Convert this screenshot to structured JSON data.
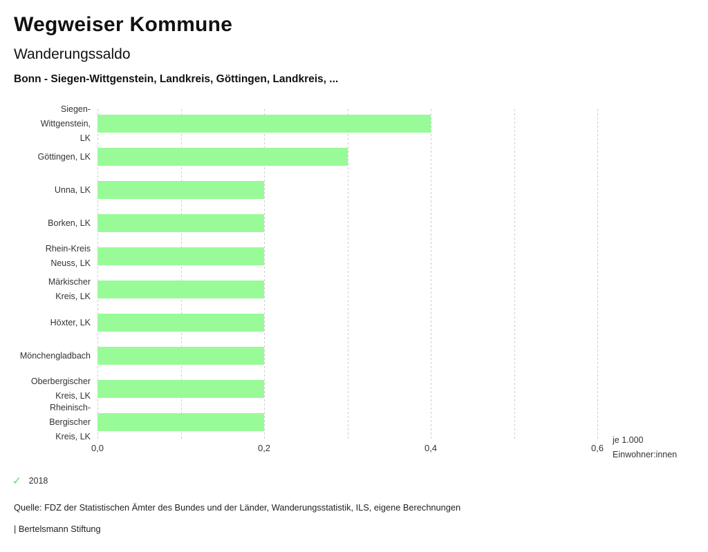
{
  "header": {
    "title": "Wegweiser Kommune",
    "subtitle": "Wanderungssaldo",
    "comparison": "Bonn - Siegen-Wittgenstein, Landkreis, Göttingen, Landkreis, ..."
  },
  "chart_data": {
    "type": "bar",
    "orientation": "horizontal",
    "title": "Wanderungssaldo",
    "subtitle": "Bonn - Siegen-Wittgenstein, Landkreis, Göttingen, Landkreis, ...",
    "categories": [
      "Siegen-Wittgenstein, LK",
      "Göttingen, LK",
      "Unna, LK",
      "Borken, LK",
      "Rhein-Kreis Neuss, LK",
      "Märkischer Kreis, LK",
      "Höxter, LK",
      "Mönchengladbach",
      "Oberbergischer Kreis, LK",
      "Rheinisch-Bergischer Kreis, LK"
    ],
    "category_label_lines": [
      [
        "Siegen-",
        "Wittgenstein,",
        "LK"
      ],
      [
        "Göttingen, LK"
      ],
      [
        "Unna, LK"
      ],
      [
        "Borken, LK"
      ],
      [
        "Rhein-Kreis",
        "Neuss, LK"
      ],
      [
        "Märkischer",
        "Kreis, LK"
      ],
      [
        "Höxter, LK"
      ],
      [
        "Mönchengladbach"
      ],
      [
        "Oberbergischer",
        "Kreis, LK"
      ],
      [
        "Rheinisch-",
        "Bergischer",
        "Kreis, LK"
      ]
    ],
    "values": [
      0.4,
      0.3,
      0.2,
      0.2,
      0.2,
      0.2,
      0.2,
      0.2,
      0.2,
      0.2
    ],
    "series_year": "2018",
    "xlabel": "je 1.000 Einwohner:innen",
    "xlabel_lines": [
      "je 1.000",
      "Einwohner:innen"
    ],
    "xlim": [
      0,
      0.6
    ],
    "gridline_step": 0.1,
    "x_ticks": [
      {
        "value": 0.0,
        "label": "0,0"
      },
      {
        "value": 0.2,
        "label": "0,2"
      },
      {
        "value": 0.4,
        "label": "0,4"
      },
      {
        "value": 0.6,
        "label": "0,6"
      }
    ],
    "grid": "vertical-dashed",
    "legend_position": "bottom-left",
    "bar_color": "#98FB98",
    "gridline_color": "#cccccc"
  },
  "legend": {
    "check_icon": "✓",
    "check_color": "#8de08d",
    "year": "2018"
  },
  "footer": {
    "source": "Quelle: FDZ der Statistischen Ämter des Bundes und der Länder, Wanderungsstatistik, ILS, eigene Berechnungen",
    "branding": "| Bertelsmann Stiftung"
  }
}
